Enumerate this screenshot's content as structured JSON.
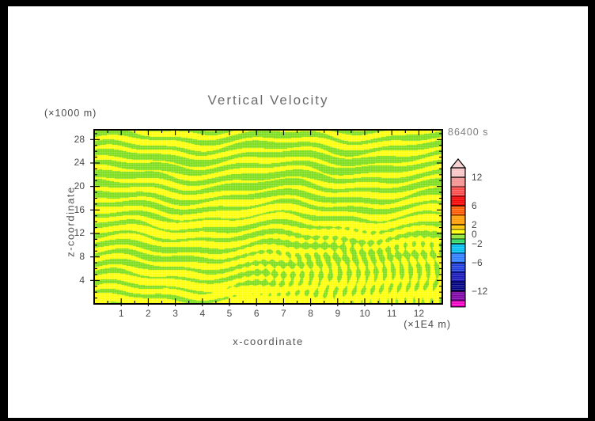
{
  "figure": {
    "title": "Vertical Velocity",
    "time_label": "86400 s",
    "x_axis": {
      "label": "x-coordinate",
      "unit_label": "(×1E4 m)",
      "major_ticks": [
        1,
        2,
        3,
        4,
        5,
        6,
        7,
        8,
        9,
        10,
        11,
        12
      ],
      "range": [
        0,
        12.87
      ]
    },
    "y_axis": {
      "label": "z-coordinate",
      "unit_label": "(×1000 m)",
      "major_ticks": [
        4,
        8,
        12,
        16,
        20,
        24,
        28
      ],
      "range": [
        0,
        29.7
      ]
    },
    "colors": {
      "positive_fill": "#FFFF00",
      "negative_fill": "#76DC12",
      "frame": "#000000",
      "title_text": "#6b6b6b",
      "tick_text": "#4a4a4a",
      "mesh_overlay": "rgba(255,255,255,0.30)"
    },
    "colorbar": {
      "over_arrow_color": "#F8D2D2",
      "units_per_pixel_note": "1 unit = 6 px",
      "segments": [
        {
          "from": 14,
          "to": 12,
          "color": "#F8C5C5"
        },
        {
          "from": 12,
          "to": 10,
          "color": "#F29090"
        },
        {
          "from": 10,
          "to": 8,
          "color": "#FA4B4B"
        },
        {
          "from": 8,
          "to": 6,
          "color": "#F50000"
        },
        {
          "from": 6,
          "to": 4,
          "color": "#FF5A00"
        },
        {
          "from": 4,
          "to": 2,
          "color": "#FF9B00"
        },
        {
          "from": 2,
          "to": 1,
          "color": "#FFC800"
        },
        {
          "from": 1,
          "to": 0,
          "color": "#FFFF00"
        },
        {
          "from": 0,
          "to": -1,
          "color": "#8CE632"
        },
        {
          "from": -1,
          "to": -2,
          "color": "#2BD762"
        },
        {
          "from": -2,
          "to": -4,
          "color": "#00BEF0"
        },
        {
          "from": -4,
          "to": -6,
          "color": "#2D7BFF"
        },
        {
          "from": -6,
          "to": -8,
          "color": "#1E3CDC"
        },
        {
          "from": -8,
          "to": -10,
          "color": "#1616B9"
        },
        {
          "from": -10,
          "to": -12,
          "color": "#000082"
        },
        {
          "from": -12,
          "to": -14,
          "color": "#7D00A5"
        },
        {
          "from": -14,
          "to": -15.3,
          "color": "#F500C8"
        }
      ],
      "labeled_levels": [
        {
          "value": 12,
          "display": "12"
        },
        {
          "value": 6,
          "display": "6"
        },
        {
          "value": 2,
          "display": "2"
        },
        {
          "value": 0,
          "display": "0"
        },
        {
          "value": -2,
          "display": "−2"
        },
        {
          "value": -6,
          "display": "−6"
        },
        {
          "value": -12,
          "display": "−12"
        }
      ]
    }
  },
  "chart_data": {
    "type": "heatmap",
    "subtype": "filled-contour cross-section",
    "title": "Vertical Velocity",
    "annotation_time": "86400 s",
    "xlabel": "x-coordinate",
    "ylabel": "z-coordinate",
    "x_unit": "(×1E4 m)",
    "y_unit": "(×1000 m)",
    "x_ticks": [
      1,
      2,
      3,
      4,
      5,
      6,
      7,
      8,
      9,
      10,
      11,
      12
    ],
    "y_ticks": [
      4,
      8,
      12,
      16,
      20,
      24,
      28
    ],
    "xlim": [
      0,
      12.87
    ],
    "ylim": [
      0,
      29.7
    ],
    "grid": false,
    "legend_position": "right colorbar with over-range arrow at top",
    "colorbar_tick_labels": [
      12,
      6,
      2,
      0,
      -2,
      -6,
      -12
    ],
    "contour_levels": [
      -14,
      -12,
      -10,
      -8,
      -6,
      -4,
      -2,
      -1,
      0,
      1,
      2,
      4,
      6,
      8,
      10,
      12,
      14
    ],
    "field_values_note": "Displayed field stays within -1 to +1: only the yellow (0 to 1) and green (-1 to 0) bands appear as irregular interleaved blobs.",
    "visible_bands": [
      {
        "range": [
          0,
          1
        ],
        "color": "#FFFF00",
        "coverage": "~55%, dominant in lower half and mid-height band"
      },
      {
        "range": [
          -1,
          0
        ],
        "color": "#76DC12",
        "coverage": "~45%, dominant near top and in 16-24 km band"
      }
    ],
    "pattern_description": "Elongated horizontal streaks of alternating yellow/green in the upper two thirds; more cellular, vertically oriented yellow/green columns in the lower-right quadrant; fine white hatch mesh over the whole field."
  }
}
